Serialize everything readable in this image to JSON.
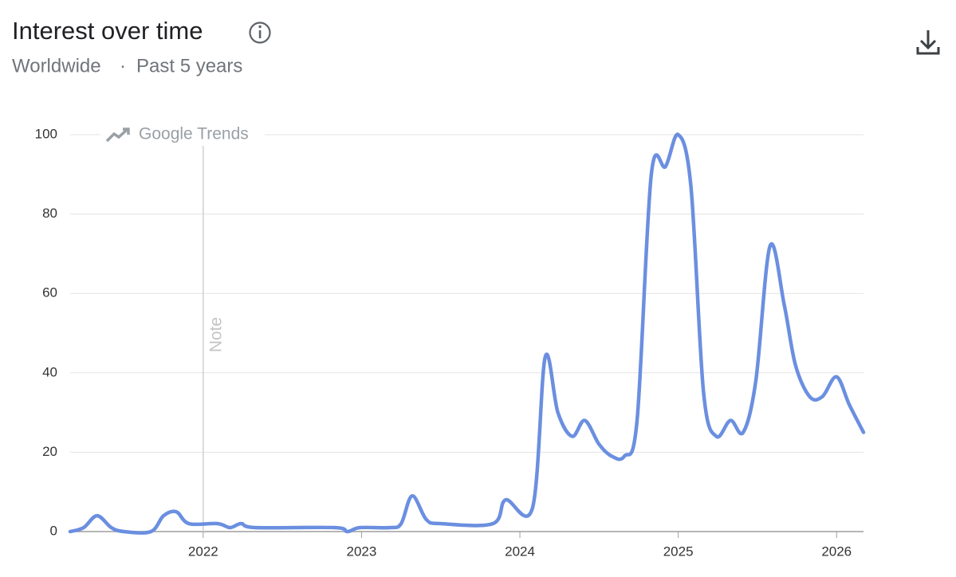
{
  "chart_data": {
    "type": "line",
    "title": "Interest over time",
    "subtitle": [
      "Worldwide",
      "·",
      "Past 5 years"
    ],
    "watermark": "Google Trends",
    "note": {
      "label": "Note",
      "x": 2022
    },
    "x": [
      2021.16,
      2021.245,
      2021.33,
      2021.42,
      2021.5,
      2021.67,
      2021.75,
      2021.83,
      2021.91,
      2022.09,
      2022.17,
      2022.24,
      2022.33,
      2022.83,
      2022.91,
      2022.99,
      2023.18,
      2023.25,
      2023.32,
      2023.41,
      2023.5,
      2023.83,
      2023.91,
      2024.08,
      2024.16,
      2024.24,
      2024.33,
      2024.41,
      2024.5,
      2024.58,
      2024.66,
      2024.74,
      2024.83,
      2024.92,
      2025.0,
      2025.08,
      2025.16,
      2025.24,
      2025.33,
      2025.41,
      2025.49,
      2025.58,
      2025.67,
      2025.74,
      2025.83,
      2025.91,
      2026.0,
      2026.08,
      2026.17
    ],
    "values": [
      0,
      1,
      4,
      1,
      0,
      0,
      4,
      5,
      2,
      2,
      1,
      2,
      1,
      1,
      0,
      1,
      1,
      2,
      9,
      3,
      2,
      2,
      8,
      6,
      44,
      30,
      24,
      28,
      22,
      19,
      19,
      28,
      90,
      92,
      100,
      87,
      35,
      24,
      28,
      25,
      38,
      72,
      57,
      42,
      34,
      34,
      39,
      32,
      25
    ],
    "color": "#6b8fe0",
    "xlim": [
      2021.16,
      2026.17
    ],
    "xticks": [
      2022,
      2023,
      2024,
      2025,
      2026
    ],
    "ylim": [
      0,
      100
    ],
    "yticks": [
      0,
      20,
      40,
      60,
      80,
      100
    ],
    "grid": true
  }
}
